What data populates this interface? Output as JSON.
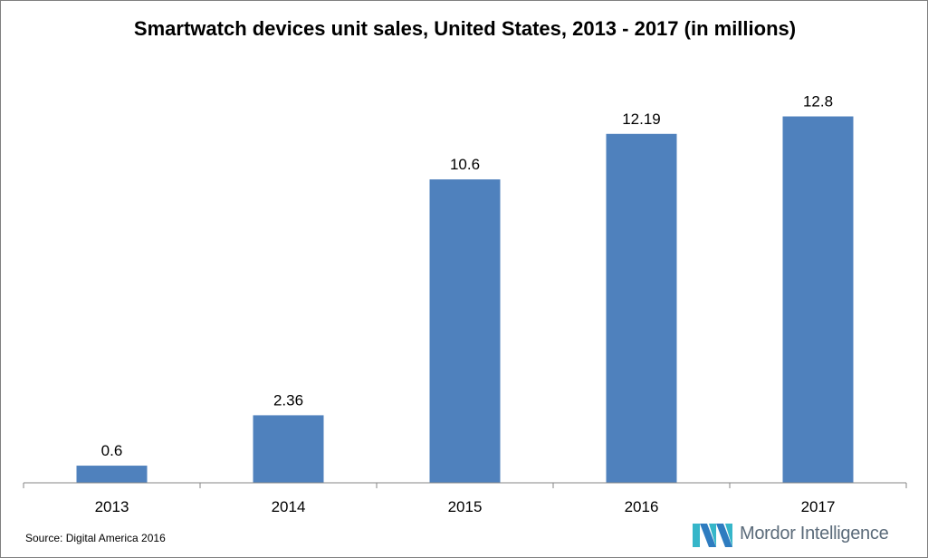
{
  "chart_data": {
    "type": "bar",
    "title": "Smartwatch devices unit sales, United States, 2013 - 2017 (in millions)",
    "categories": [
      "2013",
      "2014",
      "2015",
      "2016",
      "2017"
    ],
    "values": [
      0.6,
      2.36,
      10.6,
      12.19,
      12.8
    ],
    "data_labels": [
      "0.6",
      "2.36",
      "10.6",
      "12.19",
      "12.8"
    ],
    "xlabel": "",
    "ylabel": "",
    "ylim": [
      0,
      14
    ],
    "grid": false,
    "bar_color": "#4f81bd"
  },
  "source": "Source: Digital America 2016",
  "brand": {
    "name": "Mordor Intelligence",
    "logo_icon": "mordor-logo-icon",
    "logo_colors": [
      "#2e7cc0",
      "#36b6c9"
    ]
  }
}
